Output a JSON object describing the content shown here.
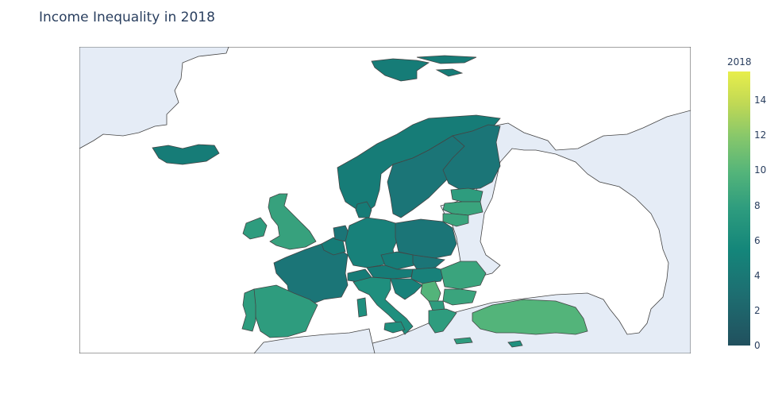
{
  "title": "Income Inequality in 2018",
  "colorbar": {
    "title": "2018",
    "ticks": [
      "0",
      "2",
      "4",
      "6",
      "8",
      "10",
      "12",
      "14"
    ],
    "tick_values": [
      0,
      2,
      4,
      6,
      8,
      10,
      12,
      14
    ],
    "range": [
      0,
      15.7
    ],
    "colorscale": "viridis",
    "low_color": "#21505e",
    "high_color": "#e8ee4b"
  },
  "map": {
    "region": "Europe",
    "land_color": "#e5ecf6",
    "border_color": "#444444"
  }
}
